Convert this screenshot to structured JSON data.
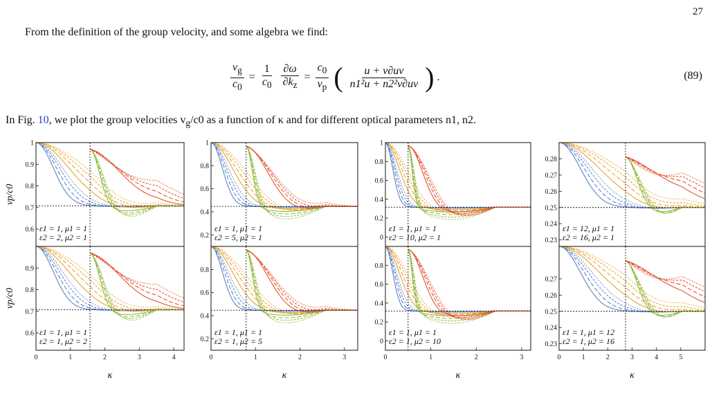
{
  "page_number": "27",
  "intro_text": "From the definition of the group velocity, and some algebra we find:",
  "equation": {
    "lhs_num": "v",
    "lhs_num_sub": "g",
    "lhs_den": "c",
    "lhs_den_sub": "0",
    "mid_coef_num": "1",
    "mid_coef_den": "c",
    "mid_coef_den_sub": "0",
    "mid_num": "∂ω",
    "mid_den": "∂k",
    "mid_den_sub": "z",
    "rhs_coef_num": "c",
    "rhs_coef_num_sub": "0",
    "rhs_coef_den": "v",
    "rhs_coef_den_sub": "p",
    "rhs_num": "u + v∂uv",
    "rhs_den": "n1²u + n2²v∂uv",
    "number": "(89)"
  },
  "caption_text": {
    "prefix": "In Fig. ",
    "fig_ref": "10",
    "middle": ", we plot the group velocities v",
    "sub": "g",
    "suffix": "/c0 as a function of κ and for different optical parameters n1, n2."
  },
  "chart_data": {
    "type": "line",
    "x_axis_label": "κ",
    "y_axis_label": "vp/c0",
    "series_colors": [
      "#5b82c6",
      "#e7a330",
      "#8fb83a",
      "#e4512d"
    ],
    "panels": [
      {
        "row": 0,
        "col": 0,
        "xlim": [
          0,
          4.3
        ],
        "ylim": [
          0.52,
          1.0
        ],
        "yticks": [
          "0.6",
          "0.7",
          "0.8",
          "0.9",
          "1"
        ],
        "hline": 0.707,
        "vline": 1.57,
        "legend": [
          "ε1 = 1, μ1 = 1",
          "ε2 = 2, μ2 = 1"
        ]
      },
      {
        "row": 0,
        "col": 1,
        "xlim": [
          0,
          3.3
        ],
        "ylim": [
          0.1,
          1.0
        ],
        "yticks": [
          "0.2",
          "0.4",
          "0.6",
          "0.8",
          "1"
        ],
        "hline": 0.447,
        "vline": 0.79,
        "legend": [
          "ε1 = 1, μ1 = 1",
          "ε2 = 5, μ2 = 1"
        ]
      },
      {
        "row": 0,
        "col": 2,
        "xlim": [
          0,
          3.2
        ],
        "ylim": [
          -0.1,
          1.0
        ],
        "yticks": [
          "0",
          "0.2",
          "0.4",
          "0.6",
          "0.8",
          "1"
        ],
        "hline": 0.316,
        "vline": 0.5,
        "legend": [
          "ε1 = 1, μ1 = 1",
          "ε2 = 10, μ2 = 1"
        ]
      },
      {
        "row": 0,
        "col": 3,
        "xlim": [
          0,
          6.0
        ],
        "ylim": [
          0.226,
          0.29
        ],
        "yticks": [
          "0.23",
          "0.24",
          "0.25",
          "0.26",
          "0.27",
          "0.28"
        ],
        "hline": 0.25,
        "vline": 2.73,
        "legend": [
          "ε1 = 12, μ1 = 1",
          "ε2 = 16, μ2 = 1"
        ]
      },
      {
        "row": 1,
        "col": 0,
        "xlim": [
          0,
          4.3
        ],
        "ylim": [
          0.52,
          1.0
        ],
        "yticks": [
          "0.6",
          "0.7",
          "0.8",
          "0.9"
        ],
        "hline": 0.707,
        "vline": 1.57,
        "legend": [
          "ε1 = 1, μ1 = 1",
          "ε2 = 1, μ2 = 2"
        ],
        "xticks": [
          "0",
          "1",
          "2",
          "3",
          "4"
        ]
      },
      {
        "row": 1,
        "col": 1,
        "xlim": [
          0,
          3.3
        ],
        "ylim": [
          0.1,
          1.0
        ],
        "yticks": [
          "0.2",
          "0.4",
          "0.6",
          "0.8"
        ],
        "hline": 0.447,
        "vline": 0.79,
        "legend": [
          "ε1 = 1, μ1 = 1",
          "ε2 = 1, μ2 = 5"
        ],
        "xticks": [
          "0",
          "1",
          "2",
          "3"
        ]
      },
      {
        "row": 1,
        "col": 2,
        "xlim": [
          0,
          3.2
        ],
        "ylim": [
          -0.1,
          1.0
        ],
        "yticks": [
          "0",
          "0.2",
          "0.4",
          "0.6",
          "0.8"
        ],
        "hline": 0.316,
        "vline": 0.5,
        "legend": [
          "ε1 = 1, μ1 = 1",
          "ε2 = 1, μ2 = 10"
        ],
        "xticks": [
          "0",
          "1",
          "2",
          "3"
        ]
      },
      {
        "row": 1,
        "col": 3,
        "xlim": [
          0,
          6.0
        ],
        "ylim": [
          0.226,
          0.29
        ],
        "yticks": [
          "0.23",
          "0.24",
          "0.25",
          "0.26",
          "0.27"
        ],
        "hline": 0.25,
        "vline": 2.73,
        "legend": [
          "ε1 = 1, μ1 = 12",
          "ε2 = 1, μ2 = 16"
        ],
        "xticks": [
          "0",
          "1",
          "2",
          "3",
          "4",
          "5"
        ]
      }
    ]
  }
}
